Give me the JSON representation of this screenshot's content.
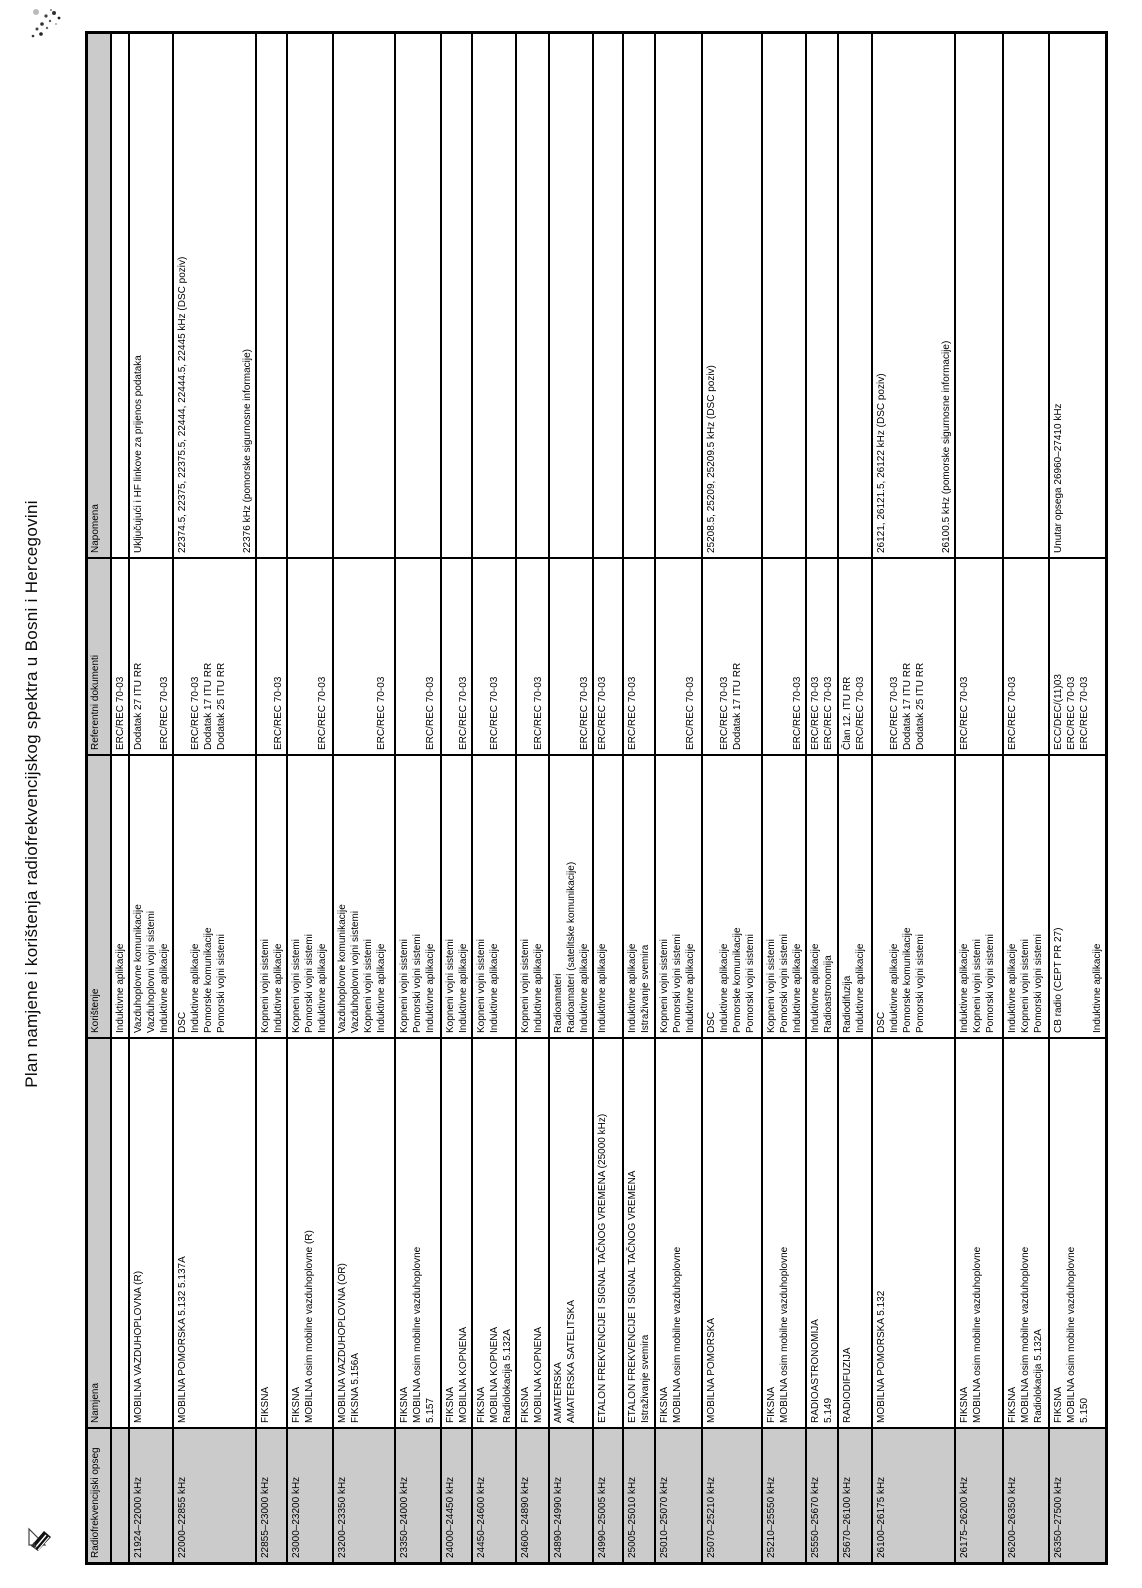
{
  "page": {
    "title": "Plan namjene i korištenja radiofrekvencijskog spektra u Bosni i Hercegovini"
  },
  "colors": {
    "header_bg": "#cbcbcb",
    "freq_cell_bg": "#cbcbcb",
    "border": "#000000",
    "text": "#000000"
  },
  "artifacts": {
    "top_left": "ink-speckle",
    "bottom_left": "pencil-mark"
  },
  "table": {
    "headers": [
      "Radiofrekvencijski opseg",
      "Namjena",
      "Korištenje",
      "Referentni dokumenti",
      "Napomena"
    ],
    "rows": [
      {
        "freq": "",
        "namjena": [],
        "koristenje": [
          "Induktivne aplikacije"
        ],
        "ref": [
          "ERC/REC 70-03"
        ],
        "napomena": []
      },
      {
        "freq": "21924–22000 kHz",
        "namjena": [
          "MOBILNA VAZDUHOPLOVNA (R)"
        ],
        "koristenje": [
          "Vazduhoplovne komunikacije",
          "Vazduhoplovni vojni sistemi",
          "Induktivne aplikacije"
        ],
        "ref": [
          "Dodatak 27 ITU RR",
          "",
          "ERC/REC 70-03"
        ],
        "napomena": [
          "Uključujući i HF linkove za prijenos podataka"
        ]
      },
      {
        "freq": "22000–22855 kHz",
        "namjena": [
          "MOBILNA POMORSKA 5.132 5.137A"
        ],
        "koristenje": [
          "DSC",
          "Induktivne aplikacije",
          "Pomorske komunikacije",
          "Pomorski vojni sistemi",
          "",
          ""
        ],
        "ref": [
          "",
          "ERC/REC 70-03",
          "Dodatak 17 ITU RR",
          "Dodatak 25 ITU RR",
          "",
          ""
        ],
        "napomena": [
          "22374.5, 22375, 22375.5, 22444, 22444.5, 22445 kHz (DSC poziv)",
          "",
          "",
          "",
          "",
          "22376 kHz (pomorske sigurnosne informacije)"
        ]
      },
      {
        "freq": "22855–23000 kHz",
        "namjena": [
          "FIKSNA"
        ],
        "koristenje": [
          "Kopneni vojni sistemi",
          "Induktivne aplikacije"
        ],
        "ref": [
          "",
          "ERC/REC 70-03"
        ],
        "napomena": []
      },
      {
        "freq": "23000–23200 kHz",
        "namjena": [
          "FIKSNA",
          "MOBILNA osim mobilne vazduhoplovne (R)"
        ],
        "koristenje": [
          "Kopneni vojni sistemi",
          "Pomorski vojni sistemi",
          "Induktivne aplikacije"
        ],
        "ref": [
          "",
          "",
          "ERC/REC 70-03"
        ],
        "napomena": []
      },
      {
        "freq": "23200–23350 kHz",
        "namjena": [
          "MOBILNA VAZDUHOPLOVNA (OR)",
          "FIKSNA 5.156A"
        ],
        "koristenje": [
          "Vazduhoplovne komunikacije",
          "Vazduhoplovni vojni sistemi",
          "Kopneni vojni sistemi",
          "Induktivne aplikacije"
        ],
        "ref": [
          "",
          "",
          "",
          "ERC/REC 70-03"
        ],
        "napomena": []
      },
      {
        "freq": "23350–24000 kHz",
        "namjena": [
          "FIKSNA",
          "MOBILNA osim mobilne vazduhoplovne",
          "5.157"
        ],
        "koristenje": [
          "Kopneni vojni sistemi",
          "Pomorski vojni sistemi",
          "Induktivne aplikacije"
        ],
        "ref": [
          "",
          "",
          "ERC/REC 70-03"
        ],
        "napomena": []
      },
      {
        "freq": "24000–24450 kHz",
        "namjena": [
          "FIKSNA",
          "MOBILNA KOPNENA"
        ],
        "koristenje": [
          "Kopneni vojni sistemi",
          "Induktivne aplikacije"
        ],
        "ref": [
          "",
          "ERC/REC 70-03"
        ],
        "napomena": []
      },
      {
        "freq": "24450–24600 kHz",
        "namjena": [
          "FIKSNA",
          "MOBILNA KOPNENA",
          "Radiolokacija 5.132A"
        ],
        "koristenje": [
          "Kopneni vojni sistemi",
          "Induktivne aplikacije"
        ],
        "ref": [
          "",
          "ERC/REC 70-03"
        ],
        "napomena": []
      },
      {
        "freq": "24600–24890 kHz",
        "namjena": [
          "FIKSNA",
          "MOBILNA KOPNENA"
        ],
        "koristenje": [
          "Kopneni vojni sistemi",
          "Induktivne aplikacije"
        ],
        "ref": [
          "",
          "ERC/REC 70-03"
        ],
        "napomena": []
      },
      {
        "freq": "24890–24990 kHz",
        "namjena": [
          "AMATERSKA",
          "AMATERSKA SATELITSKA"
        ],
        "koristenje": [
          "Radioamateri",
          "Radioamateri (satelitske komunikacije)",
          "Induktivne aplikacije"
        ],
        "ref": [
          "",
          "",
          "ERC/REC 70-03"
        ],
        "napomena": []
      },
      {
        "freq": "24990–25005 kHz",
        "namjena": [
          "ETALON FREKVENCIJE I SIGNAL TAČNOG VREMENA (25000 kHz)"
        ],
        "koristenje": [
          "Induktivne aplikacije"
        ],
        "ref": [
          "ERC/REC 70-03"
        ],
        "napomena": []
      },
      {
        "freq": "25005–25010 kHz",
        "namjena": [
          "ETALON FREKVENCIJE I SIGNAL TAČNOG VREMENA",
          "Istraživanje svemira"
        ],
        "koristenje": [
          "Induktivne aplikacije",
          "Istraživanje svemira"
        ],
        "ref": [
          "ERC/REC 70-03",
          ""
        ],
        "napomena": []
      },
      {
        "freq": "25010–25070 kHz",
        "namjena": [
          "FIKSNA",
          "MOBILNA osim mobilne vazduhoplovne"
        ],
        "koristenje": [
          "Kopneni vojni sistemi",
          "Pomorski vojni sistemi",
          "Induktivne aplikacije"
        ],
        "ref": [
          "",
          "",
          "ERC/REC 70-03"
        ],
        "napomena": []
      },
      {
        "freq": "25070–25210 kHz",
        "namjena": [
          "MOBILNA POMORSKA"
        ],
        "koristenje": [
          "DSC",
          "Induktivne aplikacije",
          "Pomorske komunikacije",
          "Pomorski vojni sistemi"
        ],
        "ref": [
          "",
          "ERC/REC 70-03",
          "Dodatak 17 ITU RR",
          ""
        ],
        "napomena": [
          "25208.5, 25209, 25209.5 kHz (DSC poziv)"
        ]
      },
      {
        "freq": "25210–25550 kHz",
        "namjena": [
          "FIKSNA",
          "MOBILNA osim mobilne vazduhoplovne"
        ],
        "koristenje": [
          "Kopneni vojni sistemi",
          "Pomorski vojni sistemi",
          "Induktivne aplikacije"
        ],
        "ref": [
          "",
          "",
          "ERC/REC 70-03"
        ],
        "napomena": []
      },
      {
        "freq": "25550–25670 kHz",
        "namjena": [
          "RADIOASTRONOMIJA",
          "5.149"
        ],
        "koristenje": [
          "Induktivne aplikacije",
          "Radioastronomija"
        ],
        "ref": [
          "ERC/REC 70-03",
          "ERC/REC 70-03"
        ],
        "napomena": []
      },
      {
        "freq": "25670–26100 kHz",
        "namjena": [
          "RADIODIFUZIJA"
        ],
        "koristenje": [
          "Radiodifuzija",
          "Induktivne aplikacije"
        ],
        "ref": [
          "Član 12. ITU RR",
          "ERC/REC 70-03"
        ],
        "napomena": []
      },
      {
        "freq": "26100–26175 kHz",
        "namjena": [
          "MOBILNA POMORSKA 5.132"
        ],
        "koristenje": [
          "DSC",
          "Induktivne aplikacije",
          "Pomorske komunikacije",
          "Pomorski vojni sistemi",
          "",
          ""
        ],
        "ref": [
          "",
          "ERC/REC 70-03",
          "Dodatak 17 ITU RR",
          "Dodatak 25 ITU RR",
          "",
          ""
        ],
        "napomena": [
          "26121, 26121.5, 26122 kHz (DSC poziv)",
          "",
          "",
          "",
          "",
          "26100.5 kHz (pomorske sigurnosne informacije)"
        ]
      },
      {
        "freq": "26175–26200 kHz",
        "namjena": [
          "FIKSNA",
          "MOBILNA osim mobilne vazduhoplovne"
        ],
        "koristenje": [
          "Induktivne aplikacije",
          "Kopneni vojni sistemi",
          "Pomorski vojni sistemi"
        ],
        "ref": [
          "ERC/REC 70-03",
          "",
          ""
        ],
        "napomena": []
      },
      {
        "freq": "26200–26350 kHz",
        "namjena": [
          "FIKSNA",
          "MOBILNA osim mobilne vazduhoplovne",
          "Radiolokacija 5.132A"
        ],
        "koristenje": [
          "Induktivne aplikacije",
          "Kopneni vojni sistemi",
          "Pomorski vojni sistemi"
        ],
        "ref": [
          "ERC/REC 70-03",
          "",
          ""
        ],
        "napomena": []
      },
      {
        "freq": "26350–27500 kHz",
        "namjena": [
          "FIKSNA",
          "MOBILNA osim mobilne vazduhoplovne",
          "5.150"
        ],
        "koristenje": [
          "CB radio (CEPT PR 27)",
          "",
          "",
          "Induktivne aplikacije"
        ],
        "ref": [
          "ECC/DEC/(11)03",
          "ERC/REC 70-03",
          "ERC/REC 70-03",
          ""
        ],
        "napomena": [
          "Unutar opsega 26960–27410 kHz"
        ]
      }
    ]
  }
}
